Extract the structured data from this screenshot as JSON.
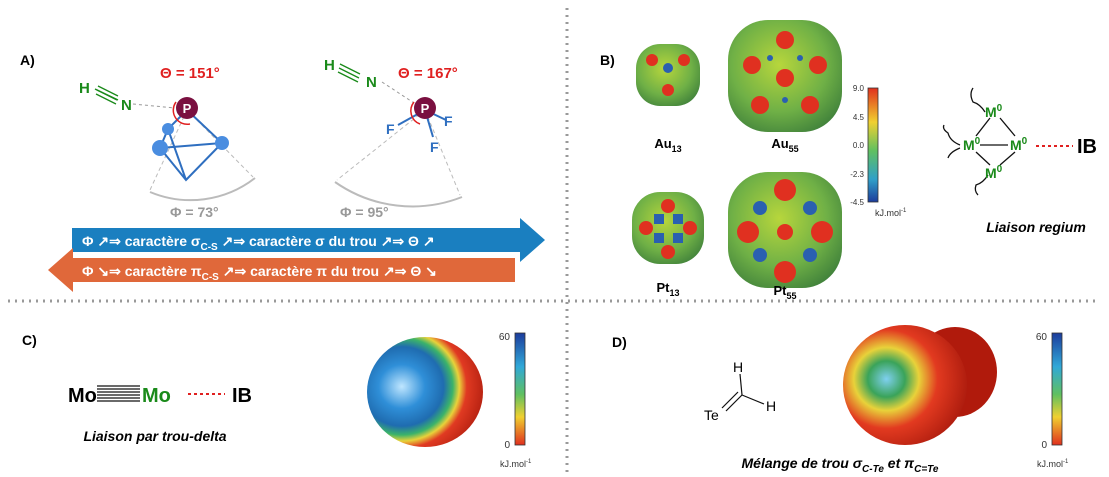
{
  "panel_a": {
    "label": "A)",
    "left": {
      "h": "H",
      "n": "N",
      "theta": "Θ = 151°",
      "atom": "P",
      "phi": "Φ = 73°"
    },
    "right": {
      "h": "H",
      "n": "N",
      "theta": "Θ = 167°",
      "atom": "P",
      "f": [
        "F",
        "F",
        "F"
      ],
      "phi": "Φ = 95°"
    },
    "arrow_sigma": {
      "start": "Φ ↗⇒ caractère σ",
      "sub": "C-S",
      "end": " ↗⇒ caractère σ du trou ↗⇒ Θ ↗"
    },
    "arrow_pi": {
      "start": "Φ ↘⇒ caractère π",
      "sub": "C-S",
      "end": " ↗⇒ caractère π du trou ↗⇒ Θ ↘"
    }
  },
  "panel_b": {
    "label": "B)",
    "clusters": [
      {
        "symbol": "Au",
        "size": "13"
      },
      {
        "symbol": "Au",
        "size": "55"
      },
      {
        "symbol": "Pt",
        "size": "13"
      },
      {
        "symbol": "Pt",
        "size": "55"
      }
    ],
    "colorbar": {
      "ticks": [
        "9.0",
        "4.5",
        "0.0",
        "-2.3",
        "-4.5"
      ],
      "unit": "kJ.mol",
      "unit_exp": "-1"
    },
    "scheme": {
      "metals": [
        {
          "symbol": "M",
          "charge": "0"
        },
        {
          "symbol": "M",
          "charge": "0"
        },
        {
          "symbol": "M",
          "charge": "0"
        },
        {
          "symbol": "M",
          "charge": "0"
        }
      ],
      "ib": "IB",
      "caption": "Liaison regium"
    }
  },
  "panel_c": {
    "label": "C)",
    "metal": "Mo",
    "metal2": "Mo",
    "ib": "IB",
    "caption": "Liaison par trou-delta",
    "colorbar": {
      "max": "60",
      "min": "0",
      "unit": "kJ.mol",
      "unit_exp": "-1"
    }
  },
  "panel_d": {
    "label": "D)",
    "atoms": {
      "h1": "H",
      "h2": "H",
      "te": "Te"
    },
    "caption": {
      "start": "Mélange de trou σ",
      "sub1": "C-Te",
      "mid": " et π",
      "sub2": "C=Te"
    },
    "colorbar": {
      "max": "60",
      "min": "0",
      "unit": "kJ.mol",
      "unit_exp": "-1"
    }
  }
}
